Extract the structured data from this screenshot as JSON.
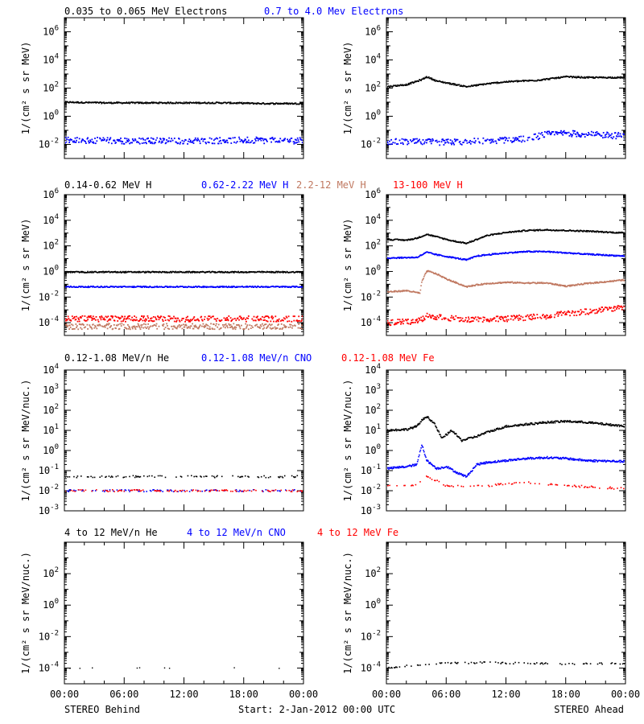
{
  "footer": {
    "x_ticks": [
      "00:00",
      "06:00",
      "12:00",
      "18:00",
      "00:00"
    ],
    "left_caption": "STEREO Behind",
    "start_caption": "Start:  2-Jan-2012 00:00 UTC",
    "right_caption": "STEREO Ahead"
  },
  "colors": {
    "black": "#000000",
    "blue": "#0000ff",
    "tan": "#c07860",
    "red": "#ff0000"
  },
  "rows": [
    {
      "legend": [
        {
          "text": "0.035 to 0.065 MeV Electrons",
          "color": "#000000"
        },
        {
          "text": "0.7 to 4.0 Mev Electrons",
          "color": "#0000ff"
        }
      ],
      "ylabel": "1/(cm² s sr MeV)"
    },
    {
      "legend": [
        {
          "text": "0.14-0.62 MeV H",
          "color": "#000000"
        },
        {
          "text": "0.62-2.22 MeV H",
          "color": "#0000ff"
        },
        {
          "text": "2.2-12 MeV H",
          "color": "#c07860"
        },
        {
          "text": "13-100 MeV H",
          "color": "#ff0000"
        }
      ],
      "ylabel": "1/(cm² s sr MeV)"
    },
    {
      "legend": [
        {
          "text": "0.12-1.08 MeV/n He",
          "color": "#000000"
        },
        {
          "text": "0.12-1.08 MeV/n CNO",
          "color": "#0000ff"
        },
        {
          "text": "0.12-1.08 MeV Fe",
          "color": "#ff0000"
        }
      ],
      "ylabel": "1/(cm² s sr MeV/nuc.)"
    },
    {
      "legend": [
        {
          "text": "4 to 12 MeV/n He",
          "color": "#000000"
        },
        {
          "text": "4 to 12 MeV/n CNO",
          "color": "#0000ff"
        },
        {
          "text": "4 to 12 MeV Fe",
          "color": "#ff0000"
        }
      ],
      "ylabel": "1/(cm² s sr MeV/nuc.)"
    }
  ],
  "chart_data": [
    {
      "type": "scatter",
      "panel": "STEREO Behind electrons",
      "x_unit": "hours since 2-Jan-2012 00:00 UTC",
      "xlim": [
        0,
        24
      ],
      "y_scale": "log",
      "ylim_exp": [
        -3,
        7
      ],
      "y_ticks_exp": [
        -2,
        0,
        2,
        4,
        6
      ],
      "series": [
        {
          "name": "0.035 to 0.065 MeV Electrons",
          "color": "#000000",
          "style": "dense",
          "x": [
            0,
            4,
            8,
            12,
            16,
            20,
            24
          ],
          "y_exp": [
            1.0,
            0.95,
            0.95,
            0.95,
            0.95,
            0.9,
            0.9
          ]
        },
        {
          "name": "0.7 to 4.0 Mev Electrons",
          "color": "#0000ff",
          "style": "noisy",
          "x": [
            0,
            6,
            12,
            18,
            24
          ],
          "y_exp": [
            -1.7,
            -1.75,
            -1.75,
            -1.7,
            -1.75
          ]
        }
      ]
    },
    {
      "type": "scatter",
      "panel": "STEREO Ahead electrons",
      "x_unit": "hours since 2-Jan-2012 00:00 UTC",
      "xlim": [
        0,
        24
      ],
      "y_scale": "log",
      "ylim_exp": [
        -3,
        7
      ],
      "y_ticks_exp": [
        -2,
        0,
        2,
        4,
        6
      ],
      "series": [
        {
          "name": "0.035 to 0.065 MeV Electrons",
          "color": "#000000",
          "style": "dense",
          "x": [
            0,
            2,
            3.5,
            4,
            5,
            6.5,
            8,
            9,
            10,
            12,
            15,
            18,
            20,
            24
          ],
          "y_exp": [
            2.1,
            2.25,
            2.6,
            2.8,
            2.5,
            2.3,
            2.1,
            2.2,
            2.3,
            2.45,
            2.55,
            2.8,
            2.75,
            2.75
          ]
        },
        {
          "name": "0.7 to 4.0 Mev Electrons",
          "color": "#0000ff",
          "style": "noisy",
          "x": [
            0,
            6,
            10,
            14,
            16,
            18,
            20,
            24
          ],
          "y_exp": [
            -1.8,
            -1.85,
            -1.75,
            -1.6,
            -1.3,
            -1.2,
            -1.3,
            -1.4
          ]
        }
      ]
    },
    {
      "type": "scatter",
      "panel": "STEREO Behind protons",
      "x_unit": "hours since 2-Jan-2012 00:00 UTC",
      "xlim": [
        0,
        24
      ],
      "y_scale": "log",
      "ylim_exp": [
        -5,
        6
      ],
      "y_ticks_exp": [
        -4,
        -2,
        0,
        2,
        4,
        6
      ],
      "series": [
        {
          "name": "0.14-0.62 MeV H",
          "color": "#000000",
          "style": "dense",
          "x": [
            0,
            24
          ],
          "y_exp": [
            -0.05,
            -0.05
          ]
        },
        {
          "name": "0.62-2.22 MeV H",
          "color": "#0000ff",
          "style": "dense",
          "x": [
            0,
            24
          ],
          "y_exp": [
            -1.2,
            -1.2
          ]
        },
        {
          "name": "2.2-12 MeV H",
          "color": "#c07860",
          "style": "noisy",
          "x": [
            0,
            24
          ],
          "y_exp": [
            -4.3,
            -4.3
          ]
        },
        {
          "name": "13-100 MeV H",
          "color": "#ff0000",
          "style": "noisy",
          "x": [
            0,
            24
          ],
          "y_exp": [
            -3.7,
            -3.7
          ]
        }
      ]
    },
    {
      "type": "scatter",
      "panel": "STEREO Ahead protons",
      "x_unit": "hours since 2-Jan-2012 00:00 UTC",
      "xlim": [
        0,
        24
      ],
      "y_scale": "log",
      "ylim_exp": [
        -5,
        6
      ],
      "y_ticks_exp": [
        -4,
        -2,
        0,
        2,
        4,
        6
      ],
      "series": [
        {
          "name": "0.14-0.62 MeV H",
          "color": "#000000",
          "style": "dense",
          "x": [
            0,
            2,
            3,
            4,
            5,
            6.5,
            8,
            9,
            10,
            12,
            14,
            16,
            18,
            20,
            24
          ],
          "y_exp": [
            2.5,
            2.45,
            2.6,
            2.9,
            2.7,
            2.4,
            2.2,
            2.5,
            2.8,
            3.05,
            3.2,
            3.25,
            3.2,
            3.15,
            3.0
          ]
        },
        {
          "name": "0.62-2.22 MeV H",
          "color": "#0000ff",
          "style": "dense",
          "x": [
            0,
            3,
            4,
            5,
            6.5,
            8,
            9,
            10,
            12,
            14,
            16,
            18,
            20,
            24
          ],
          "y_exp": [
            1.05,
            1.1,
            1.5,
            1.3,
            1.1,
            0.9,
            1.2,
            1.3,
            1.45,
            1.55,
            1.55,
            1.45,
            1.35,
            1.2
          ]
        },
        {
          "name": "2.2-12 MeV H",
          "color": "#c07860",
          "style": "dense",
          "x": [
            0,
            2,
            3.3,
            3.5,
            4,
            5,
            6,
            8,
            9,
            10,
            12,
            14,
            16,
            18,
            20,
            24
          ],
          "y_exp": [
            -1.6,
            -1.5,
            -1.7,
            -0.8,
            0.05,
            -0.2,
            -0.6,
            -1.2,
            -1.05,
            -0.95,
            -0.85,
            -0.9,
            -0.9,
            -1.15,
            -0.95,
            -0.65
          ]
        },
        {
          "name": "13-100 MeV H",
          "color": "#ff0000",
          "style": "noisy",
          "x": [
            0,
            3,
            4,
            6,
            8,
            10,
            12,
            14,
            16,
            18,
            20,
            22,
            24
          ],
          "y_exp": [
            -4.0,
            -3.9,
            -3.5,
            -3.6,
            -3.8,
            -3.7,
            -3.7,
            -3.6,
            -3.5,
            -3.3,
            -3.15,
            -2.95,
            -2.85
          ]
        }
      ]
    },
    {
      "type": "scatter",
      "panel": "STEREO Behind 0.12-1.08 MeV/n ions",
      "x_unit": "hours since 2-Jan-2012 00:00 UTC",
      "xlim": [
        0,
        24
      ],
      "y_scale": "log",
      "ylim_exp": [
        -3,
        4
      ],
      "y_ticks_exp": [
        -3,
        -2,
        -1,
        0,
        1,
        2,
        3,
        4
      ],
      "series": [
        {
          "name": "0.12-1.08 MeV/n He",
          "color": "#000000",
          "style": "sparse",
          "x": [
            0,
            24
          ],
          "y_exp": [
            -1.3,
            -1.3
          ]
        },
        {
          "name": "0.12-1.08 MeV/n CNO",
          "color": "#0000ff",
          "style": "sparse",
          "x": [
            0,
            24
          ],
          "y_exp": [
            -2.0,
            -2.0
          ]
        },
        {
          "name": "0.12-1.08 MeV Fe",
          "color": "#ff0000",
          "style": "sparse",
          "x": [
            0,
            24
          ],
          "y_exp": [
            -2.0,
            -2.0
          ]
        }
      ]
    },
    {
      "type": "scatter",
      "panel": "STEREO Ahead 0.12-1.08 MeV/n ions",
      "x_unit": "hours since 2-Jan-2012 00:00 UTC",
      "xlim": [
        0,
        24
      ],
      "y_scale": "log",
      "ylim_exp": [
        -3,
        4
      ],
      "y_ticks_exp": [
        -3,
        -2,
        -1,
        0,
        1,
        2,
        3,
        4
      ],
      "series": [
        {
          "name": "0.12-1.08 MeV/n He",
          "color": "#000000",
          "style": "dense",
          "x": [
            0,
            2,
            3,
            3.5,
            4,
            4.8,
            5.5,
            6.5,
            7.5,
            9,
            10,
            12,
            14,
            16,
            18,
            20,
            24
          ],
          "y_exp": [
            1.0,
            1.05,
            1.2,
            1.5,
            1.7,
            1.3,
            0.6,
            1.0,
            0.5,
            0.7,
            0.9,
            1.2,
            1.3,
            1.4,
            1.45,
            1.4,
            1.2
          ]
        },
        {
          "name": "0.12-1.08 MeV/n CNO",
          "color": "#0000ff",
          "style": "dense",
          "x": [
            0,
            2,
            3,
            3.5,
            4,
            5,
            6,
            7,
            8,
            9,
            10,
            12,
            14,
            16,
            18,
            20,
            24
          ],
          "y_exp": [
            -0.9,
            -0.8,
            -0.7,
            0.3,
            -0.5,
            -0.9,
            -0.8,
            -1.1,
            -1.3,
            -0.7,
            -0.6,
            -0.5,
            -0.4,
            -0.35,
            -0.4,
            -0.5,
            -0.55
          ]
        },
        {
          "name": "0.12-1.08 MeV Fe",
          "color": "#ff0000",
          "style": "sparse",
          "x": [
            0,
            3,
            4,
            6,
            10,
            14,
            18,
            24
          ],
          "y_exp": [
            -1.75,
            -1.7,
            -1.3,
            -1.75,
            -1.75,
            -1.6,
            -1.75,
            -1.9
          ]
        }
      ]
    },
    {
      "type": "scatter",
      "panel": "STEREO Behind 4 to 12 MeV/n ions",
      "x_unit": "hours since 2-Jan-2012 00:00 UTC",
      "xlim": [
        0,
        24
      ],
      "y_scale": "log",
      "ylim_exp": [
        -5,
        4
      ],
      "y_ticks_exp": [
        -4,
        -2,
        0,
        2
      ],
      "series": [
        {
          "name": "4 to 12 MeV/n He",
          "color": "#000000",
          "style": "rare",
          "x": [
            0,
            24
          ],
          "y_exp": [
            -4.0,
            -4.0
          ]
        },
        {
          "name": "4 to 12 MeV/n CNO",
          "color": "#0000ff",
          "style": "rare",
          "x": [
            0,
            24
          ],
          "y_exp": [
            -5.0,
            -5.0
          ]
        },
        {
          "name": "4 to 12 MeV Fe",
          "color": "#ff0000",
          "style": "rare",
          "x": [
            0,
            24
          ],
          "y_exp": [
            -5.0,
            -5.0
          ]
        }
      ]
    },
    {
      "type": "scatter",
      "panel": "STEREO Ahead 4 to 12 MeV/n ions",
      "x_unit": "hours since 2-Jan-2012 00:00 UTC",
      "xlim": [
        0,
        24
      ],
      "y_scale": "log",
      "ylim_exp": [
        -5,
        4
      ],
      "y_ticks_exp": [
        -4,
        -2,
        0,
        2
      ],
      "series": [
        {
          "name": "4 to 12 MeV/n He",
          "color": "#000000",
          "style": "sparse",
          "x": [
            0,
            3,
            6,
            10,
            14,
            18,
            24
          ],
          "y_exp": [
            -4.0,
            -3.8,
            -3.7,
            -3.65,
            -3.7,
            -3.75,
            -3.7
          ]
        },
        {
          "name": "4 to 12 MeV/n CNO",
          "color": "#0000ff",
          "style": "rare",
          "x": [
            0,
            24
          ],
          "y_exp": [
            -5.0,
            -5.0
          ]
        },
        {
          "name": "4 to 12 MeV Fe",
          "color": "#ff0000",
          "style": "rare",
          "x": [
            0,
            24
          ],
          "y_exp": [
            -5.0,
            -5.0
          ]
        }
      ]
    }
  ]
}
